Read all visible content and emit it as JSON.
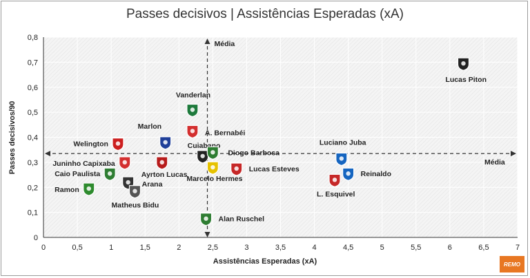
{
  "chart_data": {
    "type": "scatter",
    "title": "Passes decisivos | Assistências Esperadas (xA)",
    "xlabel": "Assistências Esperadas  (xA)",
    "ylabel": "Passes decisivos/90",
    "xlim": [
      0,
      7
    ],
    "ylim": [
      0,
      0.8
    ],
    "x_ticks": [
      "0",
      "0,5",
      "1",
      "1,5",
      "2",
      "2,5",
      "3",
      "3,5",
      "4",
      "4,5",
      "5",
      "5,5",
      "6",
      "6,5",
      "7"
    ],
    "y_ticks": [
      "0",
      "0,1",
      "0,2",
      "0,3",
      "0,4",
      "0,5",
      "0,6",
      "0,7",
      "0,8"
    ],
    "grid": true,
    "reference_lines": [
      {
        "axis": "x",
        "value": 2.42,
        "label": "Média"
      },
      {
        "axis": "y",
        "value": 0.335,
        "label": "Média"
      }
    ],
    "points": [
      {
        "name": "Lucas Piton",
        "x": 6.2,
        "y": 0.695,
        "color": "#222222"
      },
      {
        "name": "Vanderlan",
        "x": 2.2,
        "y": 0.51,
        "color": "#1e7a3c"
      },
      {
        "name": "Marlon",
        "x": 1.8,
        "y": 0.38,
        "color": "#1f3f99"
      },
      {
        "name": "A. Bernabéi",
        "x": 2.2,
        "y": 0.425,
        "color": "#d32f2f"
      },
      {
        "name": "Welington",
        "x": 1.1,
        "y": 0.375,
        "color": "#cc1f1f"
      },
      {
        "name": "Cuiabano",
        "x": 2.35,
        "y": 0.325,
        "color": "#222222"
      },
      {
        "name": "Diogo Barbosa",
        "x": 2.5,
        "y": 0.34,
        "color": "#2e7d32"
      },
      {
        "name": "Juninho Capixaba",
        "x": 1.2,
        "y": 0.3,
        "color": "#d32f2f"
      },
      {
        "name": "Ayrton Lucas",
        "x": 1.75,
        "y": 0.3,
        "color": "#b71c1c"
      },
      {
        "name": "Caio Paulista",
        "x": 0.98,
        "y": 0.255,
        "color": "#2e7d32"
      },
      {
        "name": "Arana",
        "x": 1.25,
        "y": 0.22,
        "color": "#333333"
      },
      {
        "name": "Ramon",
        "x": 0.67,
        "y": 0.195,
        "color": "#2e8b2e"
      },
      {
        "name": "Matheus Bidu",
        "x": 1.35,
        "y": 0.185,
        "color": "#555555"
      },
      {
        "name": "Marcelo Hermes",
        "x": 2.5,
        "y": 0.28,
        "color": "#e6c200"
      },
      {
        "name": "Lucas Esteves",
        "x": 2.85,
        "y": 0.275,
        "color": "#c62828"
      },
      {
        "name": "Luciano Juba",
        "x": 4.4,
        "y": 0.315,
        "color": "#1565c0"
      },
      {
        "name": "Reinaldo",
        "x": 4.5,
        "y": 0.255,
        "color": "#1565c0"
      },
      {
        "name": "L. Esquivel",
        "x": 4.3,
        "y": 0.23,
        "color": "#c62828"
      },
      {
        "name": "Alan Ruschel",
        "x": 2.4,
        "y": 0.075,
        "color": "#2e7d32"
      }
    ]
  },
  "brand_label": "REMO"
}
